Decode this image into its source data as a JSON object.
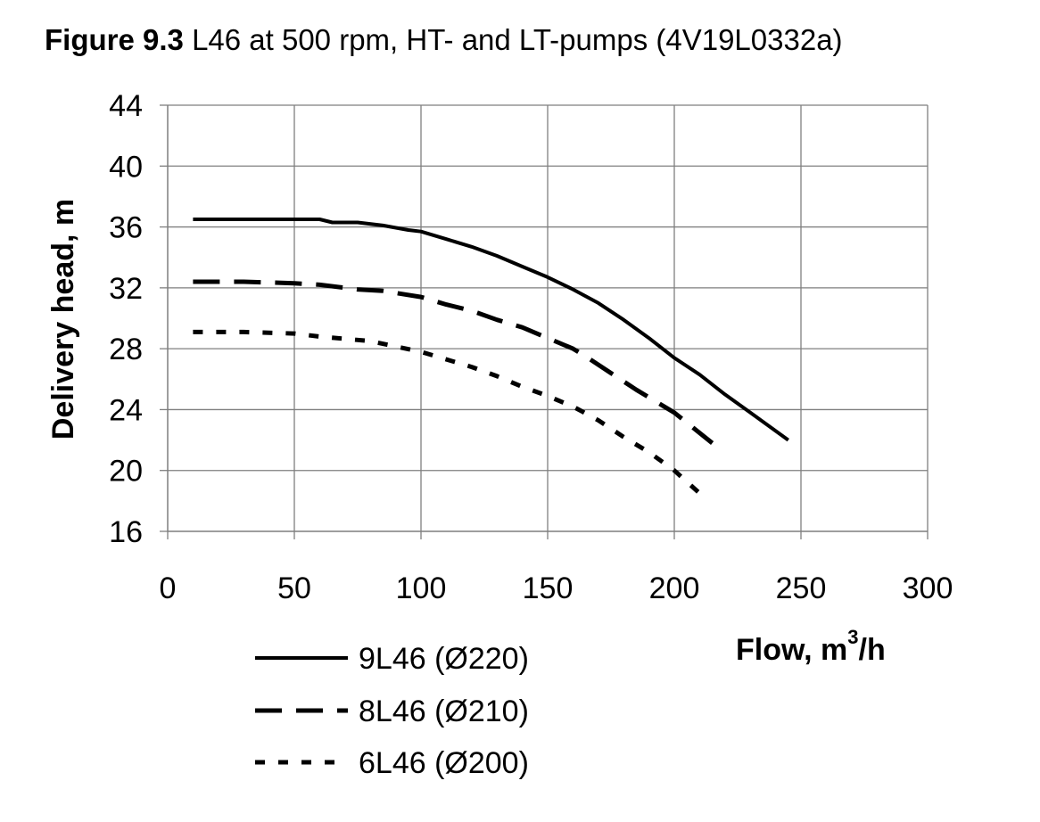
{
  "figure": {
    "label": "Figure 9.3",
    "caption": "L46 at 500 rpm, HT- and LT-pumps (4V19L0332a)"
  },
  "chart_data": {
    "type": "line",
    "xlabel": "Flow, m",
    "xlabel_sup": "3",
    "xlabel_suffix": "/h",
    "ylabel": "Delivery head, m",
    "xlim": [
      0,
      300
    ],
    "ylim": [
      16,
      44
    ],
    "x_ticks": [
      "0",
      "50",
      "100",
      "150",
      "200",
      "250",
      "300"
    ],
    "y_ticks": [
      "16",
      "20",
      "24",
      "28",
      "32",
      "36",
      "40",
      "44"
    ],
    "grid": true,
    "legend_position": "bottom-left",
    "series": [
      {
        "name": "9L46 (Ø220)",
        "style": "solid",
        "x": [
          10,
          30,
          60,
          65,
          75,
          85,
          95,
          100,
          110,
          120,
          130,
          140,
          150,
          160,
          170,
          180,
          190,
          200,
          210,
          220,
          230,
          245
        ],
        "y": [
          36.5,
          36.5,
          36.5,
          36.3,
          36.3,
          36.1,
          35.8,
          35.7,
          35.2,
          34.7,
          34.1,
          33.4,
          32.7,
          31.9,
          31.0,
          29.9,
          28.7,
          27.4,
          26.3,
          25.0,
          23.8,
          22.0
        ]
      },
      {
        "name": "8L46 (Ø210)",
        "style": "dashed",
        "x": [
          10,
          30,
          50,
          60,
          75,
          85,
          100,
          110,
          120,
          130,
          140,
          150,
          160,
          165,
          175,
          185,
          195,
          200,
          215
        ],
        "y": [
          32.4,
          32.4,
          32.3,
          32.2,
          31.9,
          31.8,
          31.4,
          30.9,
          30.5,
          29.9,
          29.4,
          28.7,
          28.0,
          27.5,
          26.4,
          25.3,
          24.3,
          23.8,
          21.8
        ]
      },
      {
        "name": "6L46 (Ø200)",
        "style": "dotted",
        "x": [
          10,
          30,
          50,
          60,
          80,
          100,
          110,
          120,
          130,
          140,
          150,
          160,
          170,
          180,
          190,
          200,
          210
        ],
        "y": [
          29.1,
          29.1,
          29.0,
          28.8,
          28.5,
          27.8,
          27.3,
          26.8,
          26.2,
          25.5,
          24.9,
          24.2,
          23.3,
          22.2,
          21.2,
          20.0,
          18.5
        ]
      }
    ]
  },
  "colors": {
    "line": "#000000",
    "grid": "#7f7f7f",
    "background": "#ffffff"
  }
}
